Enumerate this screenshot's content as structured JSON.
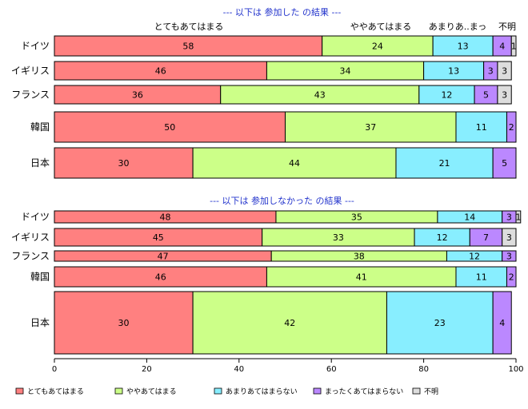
{
  "chart_data": {
    "type": "bar",
    "orientation": "horizontal",
    "stacked": true,
    "xlim": [
      0,
      100
    ],
    "x_ticks": [
      "0",
      "20",
      "40",
      "60",
      "80",
      "100"
    ],
    "colors": [
      "#ff8080",
      "#ccff88",
      "#88eeff",
      "#bb88ff",
      "#dddddd"
    ],
    "legend": {
      "position": "bottom",
      "labels": [
        "とてもあてはまる",
        "ややあてはまる",
        "あまりあてはまらない",
        "まったくあてはまらない",
        "不明"
      ]
    },
    "panels": [
      {
        "title": "--- 以下は 参加した の結果 ---",
        "column_headers": [
          "とてもあてはまる",
          "ややあてはまる",
          "あまりあ..まっ",
          "不明"
        ],
        "categories": [
          "ドイツ",
          "イギリス",
          "フランス",
          "韓国",
          "日本"
        ],
        "values": [
          [
            58,
            24,
            13,
            4,
            1
          ],
          [
            46,
            34,
            13,
            3,
            3
          ],
          [
            36,
            43,
            12,
            5,
            3
          ],
          [
            50,
            37,
            11,
            2,
            0
          ],
          [
            30,
            44,
            21,
            5,
            0
          ]
        ],
        "labels": [
          [
            "58",
            "24",
            "13",
            "4",
            "1"
          ],
          [
            "46",
            "34",
            "13",
            "3",
            "3"
          ],
          [
            "36",
            "43",
            "12",
            "5",
            "3"
          ],
          [
            "50",
            "37",
            "11",
            "2",
            ""
          ],
          [
            "30",
            "44",
            "21",
            "5",
            ""
          ]
        ]
      },
      {
        "title": "--- 以下は 参加しなかった の結果 ---",
        "categories": [
          "ドイツ",
          "イギリス",
          "フランス",
          "韓国",
          "日本"
        ],
        "values": [
          [
            48,
            35,
            14,
            3,
            1
          ],
          [
            45,
            33,
            12,
            7,
            3
          ],
          [
            47,
            38,
            12,
            3,
            0
          ],
          [
            46,
            41,
            11,
            2,
            0
          ],
          [
            30,
            42,
            23,
            4,
            0
          ]
        ],
        "labels": [
          [
            "48",
            "35",
            "14",
            "3",
            "1"
          ],
          [
            "45",
            "33",
            "12",
            "7",
            "3"
          ],
          [
            "47",
            "38",
            "12",
            "3",
            ""
          ],
          [
            "46",
            "41",
            "11",
            "2",
            ""
          ],
          [
            "30",
            "42",
            "23",
            "4",
            ""
          ]
        ]
      }
    ]
  }
}
